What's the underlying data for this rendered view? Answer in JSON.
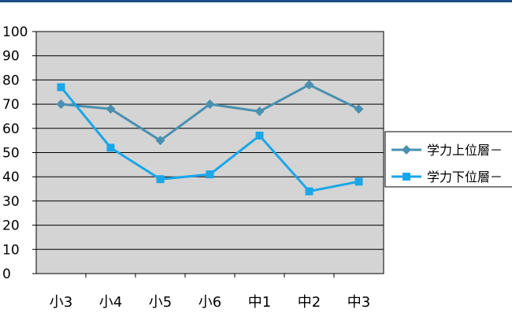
{
  "chart_data": {
    "type": "line",
    "categories": [
      "小3",
      "小4",
      "小5",
      "小6",
      "中1",
      "中2",
      "中3"
    ],
    "series": [
      {
        "name": "学力上位層－",
        "values": [
          70,
          68,
          55,
          70,
          67,
          78,
          68
        ],
        "color": "#4a90b0",
        "marker": "diamond"
      },
      {
        "name": "学力下位層－",
        "values": [
          77,
          52,
          39,
          41,
          57,
          34,
          38
        ],
        "color": "#1aa6e8",
        "marker": "square"
      }
    ],
    "ylim": [
      0,
      100
    ],
    "yticks": [
      0,
      10,
      20,
      30,
      40,
      50,
      60,
      70,
      80,
      90,
      100
    ],
    "grid": true,
    "plot_background": "#d4d4d4",
    "legend_position": "right",
    "title": "",
    "xlabel": "",
    "ylabel": ""
  },
  "colors": {
    "top_band": "#1d4f86"
  }
}
